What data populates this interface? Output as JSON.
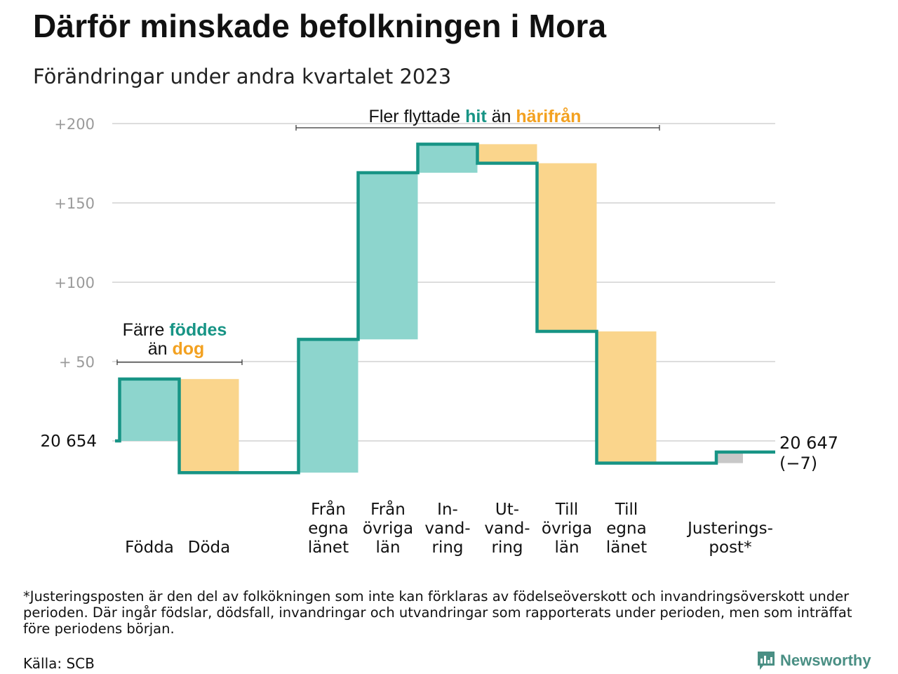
{
  "title": "Därför minskade befolkningen i Mora",
  "subtitle": "Förändringar under andra kvartalet 2023",
  "chart_data": {
    "type": "waterfall",
    "base_value": 20654,
    "base_label": "20  654",
    "end_label_value": "20 647",
    "end_label_change": "(−7)",
    "ylim": [
      -22,
      200
    ],
    "yticks": [
      {
        "value": 200,
        "label": "+200"
      },
      {
        "value": 150,
        "label": "+150"
      },
      {
        "value": 100,
        "label": "+100"
      },
      {
        "value": 50,
        "label": "+  50"
      }
    ],
    "steps": [
      {
        "label": [
          "Födda"
        ],
        "value": 39,
        "kind": "in"
      },
      {
        "label": [
          "Döda"
        ],
        "value": -59,
        "kind": "out"
      },
      {
        "label": [
          "Från",
          "egna",
          "länet"
        ],
        "value": 84,
        "kind": "in"
      },
      {
        "label": [
          "Från",
          "övriga",
          "län"
        ],
        "value": 105,
        "kind": "in"
      },
      {
        "label": [
          "In-",
          "vand-",
          "ring"
        ],
        "value": 18,
        "kind": "in"
      },
      {
        "label": [
          "Ut-",
          "vand-",
          "ring"
        ],
        "value": -12,
        "kind": "out"
      },
      {
        "label": [
          "Till",
          "övriga",
          "län"
        ],
        "value": -106,
        "kind": "out"
      },
      {
        "label": [
          "Till",
          "egna",
          "länet"
        ],
        "value": -83,
        "kind": "out"
      },
      {
        "label": [
          "Justerings-",
          "post*"
        ],
        "value": 7,
        "kind": "adjust"
      }
    ],
    "annotations": [
      {
        "parts": [
          "Färre ",
          "föddes"
        ],
        "parts2": [
          "än ",
          "dog"
        ]
      },
      {
        "parts": [
          "Fler flyttade ",
          "hit",
          " än ",
          "härifrån"
        ]
      }
    ],
    "colors": {
      "in": "#8dd5cd",
      "out": "#fad58c",
      "adjust": "#c8c8c8",
      "line": "#179485",
      "grid": "#dddddd",
      "hit": "#179485",
      "harifran": "#f3a120"
    }
  },
  "footnote": "*Justeringsposten är den del av folkökningen som inte kan förklaras av födelseöverskott och invandringsöverskott under perioden. Där ingår födslar, dödsfall, invandringar och utvandringar som rapporterats under perioden, men som inträffat före periodens början.",
  "source": "Källa: SCB",
  "brand": "Newsworthy"
}
